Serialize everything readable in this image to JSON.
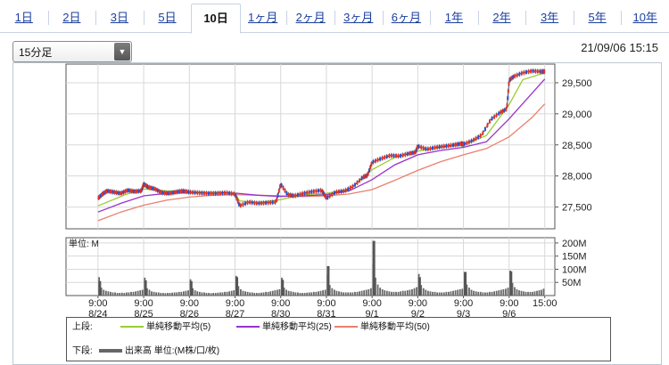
{
  "tabs": {
    "items": [
      "1日",
      "2日",
      "3日",
      "5日",
      "10日",
      "1ヶ月",
      "2ヶ月",
      "3ヶ月",
      "6ヶ月",
      "1年",
      "2年",
      "3年",
      "5年",
      "10年"
    ],
    "active_index": 4
  },
  "interval_select": {
    "value": "15分足"
  },
  "datetime": "21/09/06 15:15",
  "chart_data": [
    {
      "type": "line",
      "panel": "upper",
      "y_ticks": [
        27500,
        28000,
        28500,
        29000,
        29500
      ],
      "y_tick_labels": [
        "27,500",
        "28,000",
        "28,500",
        "29,000",
        "29,500"
      ],
      "ylim": [
        27150,
        29800
      ],
      "x_tick_labels": [
        [
          "9:00",
          "8/24"
        ],
        [
          "9:00",
          "8/25"
        ],
        [
          "9:00",
          "8/26"
        ],
        [
          "9:00",
          "8/27"
        ],
        [
          "9:00",
          "8/30"
        ],
        [
          "9:00",
          "8/31"
        ],
        [
          "9:00",
          "9/1"
        ],
        [
          "9:00",
          "9/2"
        ],
        [
          "9:00",
          "9/3"
        ],
        [
          "9:00",
          "9/6"
        ],
        [
          "15:00",
          ""
        ]
      ],
      "x_ticks": [
        0,
        1,
        2,
        3,
        4,
        5,
        6,
        7,
        8,
        9,
        9.78
      ],
      "price": {
        "x": [
          0.0,
          0.1,
          0.2,
          0.35,
          0.5,
          0.65,
          0.8,
          0.95,
          1.0,
          1.1,
          1.25,
          1.4,
          1.55,
          1.7,
          1.85,
          2.0,
          2.2,
          2.4,
          2.6,
          2.8,
          3.0,
          3.1,
          3.3,
          3.5,
          3.7,
          3.9,
          4.0,
          4.15,
          4.3,
          4.5,
          4.7,
          4.9,
          5.0,
          5.2,
          5.4,
          5.6,
          5.8,
          5.9,
          6.0,
          6.2,
          6.4,
          6.6,
          6.8,
          6.95,
          7.0,
          7.2,
          7.4,
          7.6,
          7.8,
          7.95,
          8.0,
          8.2,
          8.4,
          8.6,
          8.8,
          8.95,
          9.0,
          9.1,
          9.3,
          9.5,
          9.7,
          9.78
        ],
        "values": [
          27640,
          27710,
          27760,
          27740,
          27720,
          27770,
          27750,
          27760,
          27870,
          27820,
          27790,
          27730,
          27720,
          27740,
          27760,
          27740,
          27730,
          27720,
          27720,
          27730,
          27710,
          27520,
          27580,
          27560,
          27570,
          27580,
          27870,
          27700,
          27680,
          27720,
          27750,
          27770,
          27640,
          27740,
          27760,
          27840,
          27980,
          28010,
          28220,
          28280,
          28330,
          28320,
          28360,
          28380,
          28480,
          28430,
          28460,
          28480,
          28500,
          28520,
          28510,
          28570,
          28660,
          28910,
          29020,
          29080,
          29540,
          29600,
          29660,
          29690,
          29680,
          29680
        ]
      },
      "series": [
        {
          "name": "単純移動平均(5)",
          "color": "#9acd32",
          "x": [
            0.0,
            0.6,
            1.0,
            1.5,
            2.0,
            2.5,
            3.0,
            3.1,
            3.5,
            4.0,
            4.5,
            5.0,
            5.5,
            6.0,
            6.5,
            7.0,
            7.5,
            8.0,
            8.5,
            9.0,
            9.3,
            9.78
          ],
          "values": [
            27520,
            27700,
            27790,
            27760,
            27740,
            27730,
            27720,
            27600,
            27570,
            27620,
            27700,
            27720,
            27780,
            28100,
            28300,
            28400,
            28460,
            28500,
            28650,
            29150,
            29550,
            29660
          ]
        },
        {
          "name": "単純移動平均(25)",
          "color": "#9932cc",
          "x": [
            0.0,
            0.5,
            1.0,
            1.5,
            2.0,
            2.5,
            3.0,
            3.5,
            4.0,
            4.5,
            5.0,
            5.5,
            6.0,
            6.5,
            7.0,
            7.5,
            8.0,
            8.5,
            9.0,
            9.5,
            9.78
          ],
          "values": [
            27420,
            27560,
            27680,
            27720,
            27730,
            27735,
            27725,
            27690,
            27670,
            27680,
            27700,
            27760,
            27940,
            28180,
            28340,
            28410,
            28460,
            28550,
            28920,
            29330,
            29560
          ]
        },
        {
          "name": "単純移動平均(50)",
          "color": "#e9806e",
          "x": [
            0.0,
            0.5,
            1.0,
            1.5,
            2.0,
            2.5,
            3.0,
            3.5,
            4.0,
            4.5,
            5.0,
            5.5,
            6.0,
            6.5,
            7.0,
            7.5,
            8.0,
            8.5,
            9.0,
            9.5,
            9.78
          ],
          "values": [
            27280,
            27420,
            27530,
            27610,
            27660,
            27690,
            27700,
            27690,
            27680,
            27670,
            27680,
            27710,
            27780,
            27930,
            28090,
            28230,
            28340,
            28440,
            28630,
            28940,
            29160
          ]
        }
      ]
    },
    {
      "type": "bar",
      "panel": "lower",
      "unit_label": "単位: M",
      "y_ticks": [
        50,
        100,
        150,
        200
      ],
      "y_tick_labels": [
        "50M",
        "100M",
        "150M",
        "200M"
      ],
      "ylim": [
        0,
        220
      ],
      "series_name": "出来高 単位:(M株/口/枚)",
      "days": [
        {
          "open": 0,
          "close": 1,
          "spike": 55,
          "values": [
            70,
            30,
            22,
            18,
            16,
            14,
            12,
            12,
            10,
            10,
            11,
            10,
            12,
            12,
            14,
            14,
            16,
            18,
            20,
            22
          ]
        },
        {
          "open": 1,
          "close": 2,
          "spike": 58,
          "values": [
            68,
            28,
            22,
            16,
            14,
            12,
            12,
            10,
            10,
            9,
            10,
            10,
            11,
            12,
            12,
            14,
            14,
            16,
            18,
            20
          ]
        },
        {
          "open": 2,
          "close": 3,
          "spike": 55,
          "values": [
            62,
            28,
            20,
            16,
            14,
            12,
            12,
            10,
            10,
            9,
            10,
            10,
            11,
            12,
            12,
            14,
            14,
            16,
            18,
            20
          ]
        },
        {
          "open": 3,
          "close": 4,
          "spike": 70,
          "values": [
            75,
            36,
            24,
            18,
            16,
            14,
            12,
            12,
            10,
            10,
            10,
            11,
            12,
            14,
            14,
            16,
            18,
            20,
            22,
            24
          ]
        },
        {
          "open": 4,
          "close": 5,
          "spike": 60,
          "values": [
            68,
            30,
            22,
            18,
            16,
            14,
            12,
            12,
            10,
            10,
            10,
            11,
            12,
            12,
            14,
            14,
            16,
            18,
            20,
            22
          ]
        },
        {
          "open": 5,
          "close": 6,
          "spike": 112,
          "values": [
            78,
            40,
            28,
            22,
            18,
            16,
            14,
            12,
            12,
            12,
            12,
            12,
            14,
            14,
            16,
            18,
            20,
            22,
            24,
            28
          ]
        },
        {
          "open": 6,
          "close": 7,
          "spike": 208,
          "values": [
            120,
            68,
            42,
            30,
            24,
            20,
            18,
            16,
            14,
            14,
            14,
            14,
            16,
            18,
            18,
            20,
            22,
            24,
            28,
            32
          ]
        },
        {
          "open": 7,
          "close": 8,
          "spike": 70,
          "values": [
            82,
            40,
            28,
            22,
            18,
            16,
            14,
            14,
            12,
            12,
            12,
            12,
            14,
            14,
            16,
            18,
            20,
            22,
            24,
            26
          ]
        },
        {
          "open": 8,
          "close": 9,
          "spike": 90,
          "values": [
            86,
            42,
            30,
            22,
            18,
            16,
            14,
            14,
            12,
            12,
            12,
            14,
            14,
            16,
            18,
            20,
            22,
            24,
            26,
            30
          ]
        },
        {
          "open": 9,
          "close": 9.78,
          "spike": 92,
          "values": [
            95,
            48,
            32,
            24,
            20,
            18,
            16,
            14,
            14,
            14,
            14,
            16,
            18,
            20,
            22,
            26
          ]
        }
      ]
    }
  ],
  "legend": {
    "upper_label": "上段:",
    "lower_label": "下段:",
    "items": [
      {
        "label": "単純移動平均(5)",
        "color": "#9acd32"
      },
      {
        "label": "単純移動平均(25)",
        "color": "#9932cc"
      },
      {
        "label": "単純移動平均(50)",
        "color": "#e9806e"
      }
    ],
    "volume_label": "出来高 単位:(M株/口/枚)",
    "volume_color": "#666666"
  }
}
